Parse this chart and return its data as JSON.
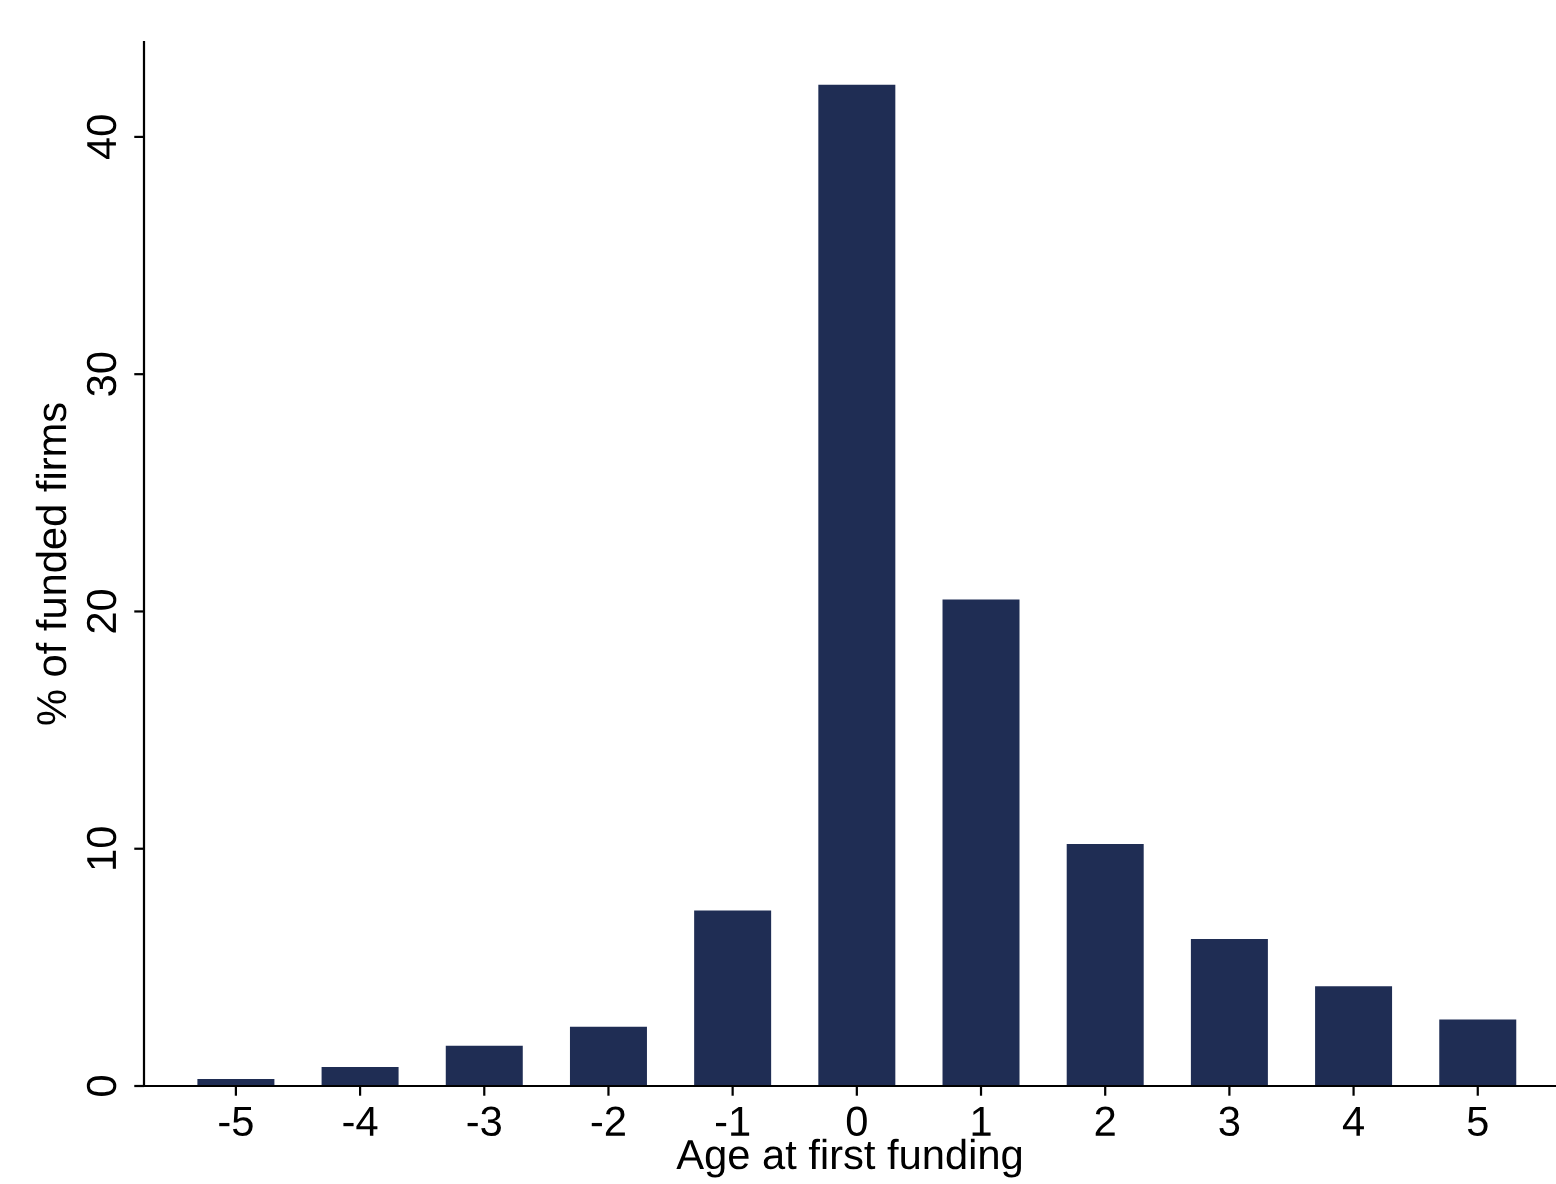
{
  "chart_data": {
    "type": "bar",
    "xlabel": "Age at first funding",
    "ylabel": "% of funded firms",
    "categories": [
      "-5",
      "-4",
      "-3",
      "-2",
      "-1",
      "0",
      "1",
      "2",
      "3",
      "4",
      "5"
    ],
    "values": [
      0.3,
      0.8,
      1.7,
      2.5,
      7.4,
      42.2,
      20.5,
      10.2,
      6.2,
      4.2,
      2.8
    ],
    "color": "#1f2d54",
    "ylim": [
      0,
      44
    ],
    "yticks": [
      0,
      10,
      20,
      30,
      40
    ],
    "grid": false,
    "legend": false
  }
}
